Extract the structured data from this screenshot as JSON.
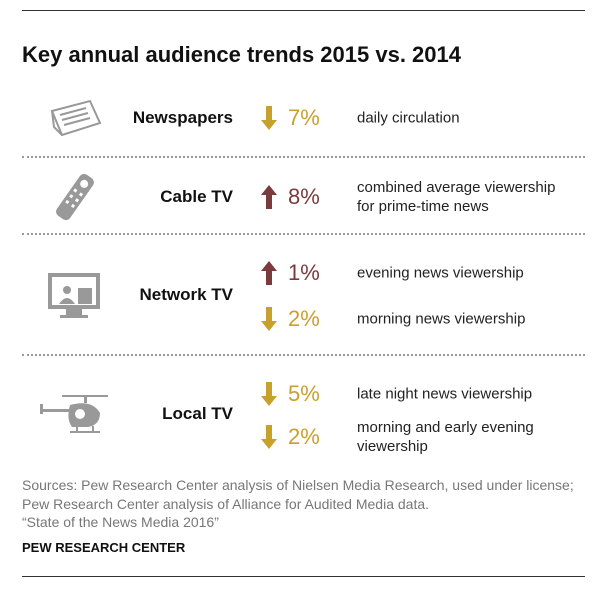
{
  "title": "Key annual audience trends 2015 vs. 2014",
  "sections": [
    {
      "medium": "Newspapers",
      "trends": [
        {
          "direction": "down",
          "change": "7%",
          "description": "daily circulation"
        }
      ]
    },
    {
      "medium": "Cable TV",
      "trends": [
        {
          "direction": "up",
          "change": "8%",
          "description": "combined average viewership for prime-time news"
        }
      ]
    },
    {
      "medium": "Network TV",
      "trends": [
        {
          "direction": "up",
          "change": "1%",
          "description": "evening news viewership"
        },
        {
          "direction": "down",
          "change": "2%",
          "description": "morning news viewership"
        }
      ]
    },
    {
      "medium": "Local TV",
      "trends": [
        {
          "direction": "down",
          "change": "5%",
          "description": "late night news viewership"
        },
        {
          "direction": "down",
          "change": "2%",
          "description": "morning and early evening viewership"
        }
      ]
    }
  ],
  "notes": {
    "sources": "Sources: Pew Research Center analysis of Nielsen Media Research, used under license; Pew Research Center analysis of Alliance for Audited Media data.",
    "report": "“State of the News Media 2016”"
  },
  "footer": "PEW RESEARCH CENTER",
  "colors": {
    "down": "#c8a02c",
    "up": "#7b3a3c"
  }
}
